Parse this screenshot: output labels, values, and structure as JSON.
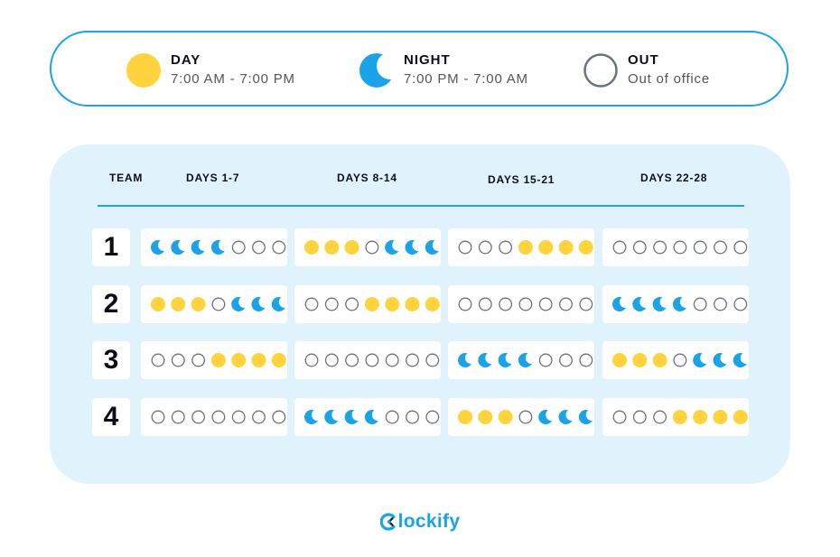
{
  "legend": {
    "items": [
      {
        "key": "day",
        "title": "DAY",
        "subtitle": "7:00 AM - 7:00 PM",
        "icon": "sun-icon"
      },
      {
        "key": "night",
        "title": "NIGHT",
        "subtitle": "7:00 PM - 7:00 AM",
        "icon": "moon-icon"
      },
      {
        "key": "out",
        "title": "OUT",
        "subtitle": "Out of office",
        "icon": "empty-circle-icon"
      }
    ]
  },
  "colors": {
    "day": "#ffd33d",
    "night": "#1aa3e8",
    "out_stroke": "#6b7280",
    "accent": "#1aa3e8",
    "panel_bg": "#e0f3fc"
  },
  "table": {
    "headers": [
      "TEAM",
      "DAYS 1-7",
      "DAYS 8-14",
      "DAYS 15-21",
      "DAYS 22-28"
    ],
    "rows": [
      {
        "team": "1",
        "weeks": [
          "NNNNOOO",
          "DDDONNN",
          "OOODDDD",
          "OOOOOOO"
        ]
      },
      {
        "team": "2",
        "weeks": [
          "DDDONNN",
          "OOODDDD",
          "OOOOOOO",
          "NNNNOOO"
        ]
      },
      {
        "team": "3",
        "weeks": [
          "OOODDDD",
          "OOOOOOO",
          "NNNNOOO",
          "DDDONNN"
        ]
      },
      {
        "team": "4",
        "weeks": [
          "OOOOOOO",
          "NNNNOOO",
          "DDDONNN",
          "OOODDDD"
        ]
      }
    ]
  },
  "brand": {
    "name": "Clockify",
    "logo_icon": "clockify-c-icon"
  }
}
